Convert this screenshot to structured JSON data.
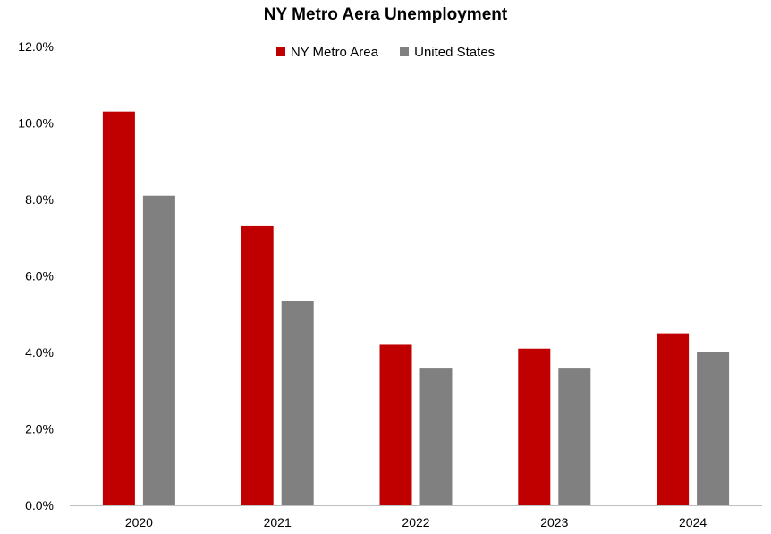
{
  "chart_data": {
    "type": "bar",
    "title": "NY Metro Aera Unemployment",
    "xlabel": "",
    "ylabel": "",
    "categories": [
      "2020",
      "2021",
      "2022",
      "2023",
      "2024"
    ],
    "series": [
      {
        "name": "NY Metro Area",
        "values": [
          10.3,
          7.3,
          4.2,
          4.1,
          4.5
        ],
        "color": "#c00000"
      },
      {
        "name": "United States",
        "values": [
          8.1,
          5.35,
          3.6,
          3.6,
          4.0
        ],
        "color": "#808080"
      }
    ],
    "ylim": [
      0,
      12
    ],
    "yticks": [
      0,
      2,
      4,
      6,
      8,
      10,
      12
    ],
    "ytick_labels": [
      "0.0%",
      "2.0%",
      "4.0%",
      "6.0%",
      "8.0%",
      "10.0%",
      "12.0%"
    ],
    "grid": false,
    "legend_position": "top"
  }
}
